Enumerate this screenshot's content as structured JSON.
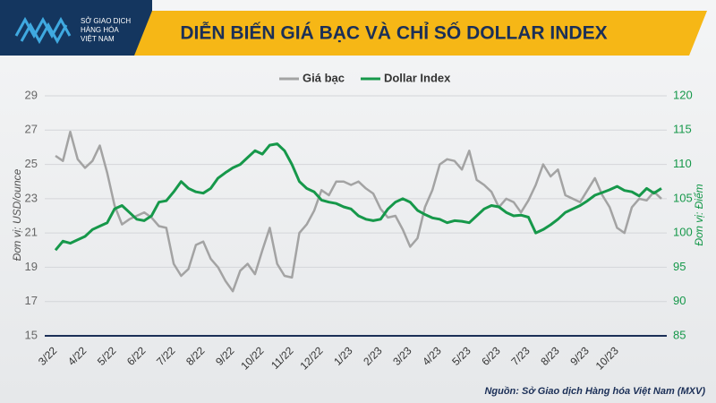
{
  "logo_lines": [
    "SỞ GIAO DỊCH",
    "HÀNG HÓA",
    "VIỆT NAM"
  ],
  "chart_data": {
    "type": "line",
    "title": "DIỄN BIẾN GIÁ BẠC VÀ CHỈ SỐ DOLLAR INDEX",
    "y_label": "Đơn vị: USD/ounce",
    "y2_label": "Đơn vị: Điểm",
    "source": "Nguồn: Sở Giao dịch Hàng hóa Việt Nam (MXV)",
    "categories": [
      "3/22",
      null,
      null,
      null,
      "4/22",
      null,
      null,
      null,
      "5/22",
      null,
      null,
      null,
      "6/22",
      null,
      null,
      null,
      "7/22",
      null,
      null,
      null,
      "8/22",
      null,
      null,
      null,
      "9/22",
      null,
      null,
      null,
      "10/22",
      null,
      null,
      null,
      "11/22",
      null,
      null,
      null,
      "12/22",
      null,
      null,
      null,
      "1/23",
      null,
      null,
      null,
      "2/23",
      null,
      null,
      null,
      "3/23",
      null,
      null,
      null,
      "4/23",
      null,
      null,
      null,
      "5/23",
      null,
      null,
      null,
      "6/23",
      null,
      null,
      null,
      "7/23",
      null,
      null,
      null,
      "8/23",
      null,
      null,
      null,
      "9/23",
      null,
      null,
      null,
      "10/23",
      null,
      null,
      null,
      null,
      null,
      null
    ],
    "series": [
      {
        "name": "Giá bạc",
        "color": "#a3a3a3",
        "axis": "y",
        "values": [
          25.5,
          25.2,
          26.9,
          25.3,
          24.8,
          25.2,
          26.1,
          24.5,
          22.6,
          21.5,
          21.8,
          22.0,
          22.2,
          21.9,
          21.4,
          21.3,
          19.2,
          18.5,
          18.9,
          20.3,
          20.5,
          19.5,
          19.0,
          18.2,
          17.6,
          18.8,
          19.2,
          18.6,
          20.0,
          21.3,
          19.2,
          18.5,
          18.4,
          21.0,
          21.5,
          22.3,
          23.5,
          23.2,
          24.0,
          24.0,
          23.8,
          24.0,
          23.6,
          23.3,
          22.4,
          21.9,
          22.0,
          21.2,
          20.2,
          20.7,
          22.5,
          23.5,
          25.0,
          25.3,
          25.2,
          24.7,
          25.8,
          24.1,
          23.8,
          23.4,
          22.5,
          23.0,
          22.8,
          22.2,
          22.9,
          23.8,
          25.0,
          24.3,
          24.7,
          23.2,
          23.0,
          22.8,
          23.5,
          24.2,
          23.2,
          22.5,
          21.3,
          21.0,
          22.5,
          23.0,
          22.9,
          23.4,
          23.0
        ]
      },
      {
        "name": "Dollar Index",
        "color": "#16984a",
        "axis": "y2",
        "values": [
          97.5,
          98.8,
          98.5,
          99.0,
          99.5,
          100.5,
          101.0,
          101.5,
          103.5,
          104.0,
          103.0,
          102.0,
          101.8,
          102.5,
          104.5,
          104.7,
          106.0,
          107.5,
          106.5,
          106.0,
          105.8,
          106.5,
          108.0,
          108.8,
          109.5,
          110.0,
          111.0,
          112.0,
          111.5,
          112.8,
          113.0,
          112.0,
          110.0,
          107.5,
          106.5,
          106.0,
          104.8,
          104.5,
          104.3,
          103.8,
          103.5,
          102.5,
          102.0,
          101.8,
          102.0,
          103.5,
          104.5,
          105.0,
          104.5,
          103.3,
          102.7,
          102.2,
          102.0,
          101.5,
          101.8,
          101.7,
          101.5,
          102.5,
          103.5,
          104.0,
          103.8,
          103.0,
          102.5,
          102.6,
          102.3,
          100.0,
          100.5,
          101.2,
          102.0,
          103.0,
          103.5,
          104.0,
          104.7,
          105.5,
          105.9,
          106.3,
          106.8,
          106.2,
          106.0,
          105.4,
          106.5,
          105.8,
          106.5
        ]
      }
    ],
    "ylim": [
      15,
      29
    ],
    "yticks": [
      15,
      17,
      19,
      21,
      23,
      25,
      27,
      29
    ],
    "y2lim": [
      85,
      120
    ],
    "y2ticks": [
      85,
      90,
      95,
      100,
      105,
      110,
      115,
      120
    ],
    "grid": true
  }
}
